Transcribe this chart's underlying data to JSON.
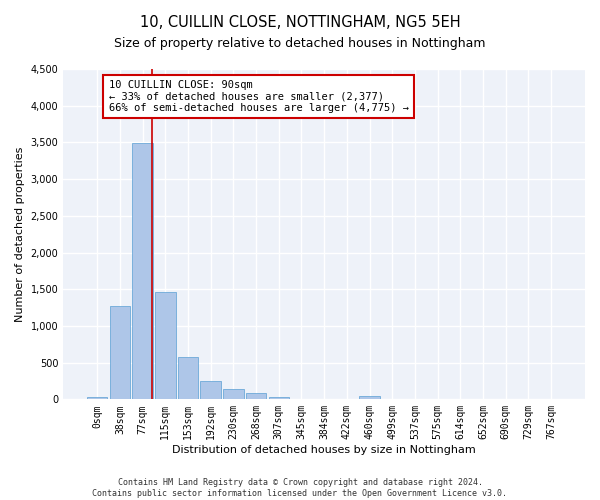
{
  "title": "10, CUILLIN CLOSE, NOTTINGHAM, NG5 5EH",
  "subtitle": "Size of property relative to detached houses in Nottingham",
  "xlabel": "Distribution of detached houses by size in Nottingham",
  "ylabel": "Number of detached properties",
  "bar_labels": [
    "0sqm",
    "38sqm",
    "77sqm",
    "115sqm",
    "153sqm",
    "192sqm",
    "230sqm",
    "268sqm",
    "307sqm",
    "345sqm",
    "384sqm",
    "422sqm",
    "460sqm",
    "499sqm",
    "537sqm",
    "575sqm",
    "614sqm",
    "652sqm",
    "690sqm",
    "729sqm",
    "767sqm"
  ],
  "bar_values": [
    25,
    1270,
    3490,
    1460,
    580,
    245,
    140,
    90,
    35,
    10,
    5,
    5,
    40,
    0,
    0,
    0,
    0,
    0,
    0,
    0,
    0
  ],
  "bar_color": "#aec6e8",
  "bar_edge_color": "#5a9fd4",
  "ylim": [
    0,
    4500
  ],
  "yticks": [
    0,
    500,
    1000,
    1500,
    2000,
    2500,
    3000,
    3500,
    4000,
    4500
  ],
  "vline_x": 2.43,
  "annotation_box_text": "10 CUILLIN CLOSE: 90sqm\n← 33% of detached houses are smaller (2,377)\n66% of semi-detached houses are larger (4,775) →",
  "annotation_box_color": "#cc0000",
  "footer_line1": "Contains HM Land Registry data © Crown copyright and database right 2024.",
  "footer_line2": "Contains public sector information licensed under the Open Government Licence v3.0.",
  "bg_color": "#eef2f9",
  "grid_color": "#ffffff",
  "title_fontsize": 10.5,
  "subtitle_fontsize": 9,
  "axis_label_fontsize": 8,
  "tick_fontsize": 7,
  "annotation_fontsize": 7.5,
  "footer_fontsize": 6
}
